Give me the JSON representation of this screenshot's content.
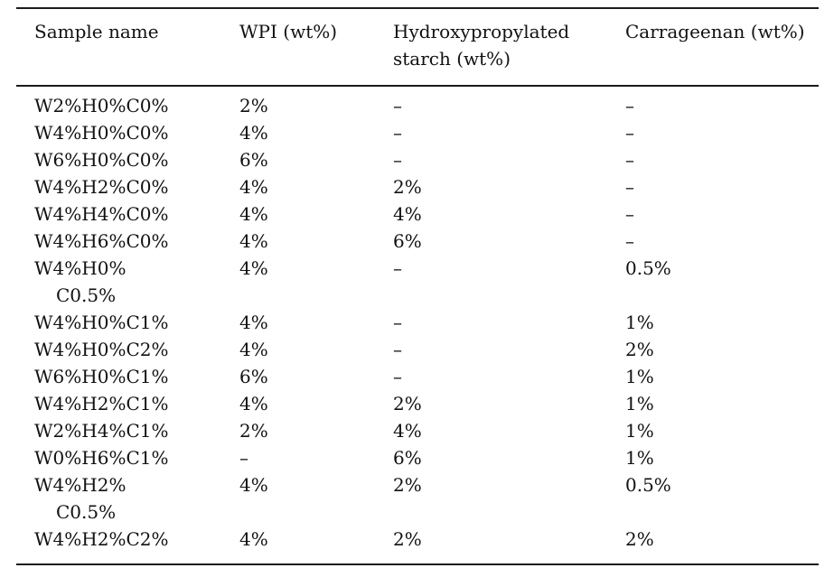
{
  "table": {
    "text_color": "#111111",
    "rule_color": "#1b1b1b",
    "columns": [
      {
        "label": "Sample name"
      },
      {
        "label": "WPI (wt%)"
      },
      {
        "label": "Hydroxypropylated starch (wt%)"
      },
      {
        "label": "Carrageenan (wt%)"
      }
    ],
    "rows": [
      {
        "sample": "W2%H0%C0%",
        "sample_wrap": "",
        "wpi": "2%",
        "starch": "–",
        "carrageenan": "–"
      },
      {
        "sample": "W4%H0%C0%",
        "sample_wrap": "",
        "wpi": "4%",
        "starch": "–",
        "carrageenan": "–"
      },
      {
        "sample": "W6%H0%C0%",
        "sample_wrap": "",
        "wpi": "6%",
        "starch": "–",
        "carrageenan": "–"
      },
      {
        "sample": "W4%H2%C0%",
        "sample_wrap": "",
        "wpi": "4%",
        "starch": "2%",
        "carrageenan": "–"
      },
      {
        "sample": "W4%H4%C0%",
        "sample_wrap": "",
        "wpi": "4%",
        "starch": "4%",
        "carrageenan": "–"
      },
      {
        "sample": "W4%H6%C0%",
        "sample_wrap": "",
        "wpi": "4%",
        "starch": "6%",
        "carrageenan": "–"
      },
      {
        "sample": "W4%H0%",
        "sample_wrap": "C0.5%",
        "wpi": "4%",
        "starch": "–",
        "carrageenan": "0.5%"
      },
      {
        "sample": "W4%H0%C1%",
        "sample_wrap": "",
        "wpi": "4%",
        "starch": "–",
        "carrageenan": "1%"
      },
      {
        "sample": "W4%H0%C2%",
        "sample_wrap": "",
        "wpi": "4%",
        "starch": "–",
        "carrageenan": "2%"
      },
      {
        "sample": "W6%H0%C1%",
        "sample_wrap": "",
        "wpi": "6%",
        "starch": "–",
        "carrageenan": "1%"
      },
      {
        "sample": "W4%H2%C1%",
        "sample_wrap": "",
        "wpi": "4%",
        "starch": "2%",
        "carrageenan": "1%"
      },
      {
        "sample": "W2%H4%C1%",
        "sample_wrap": "",
        "wpi": "2%",
        "starch": "4%",
        "carrageenan": "1%"
      },
      {
        "sample": "W0%H6%C1%",
        "sample_wrap": "",
        "wpi": "–",
        "starch": "6%",
        "carrageenan": "1%"
      },
      {
        "sample": "W4%H2%",
        "sample_wrap": "C0.5%",
        "wpi": "4%",
        "starch": "2%",
        "carrageenan": "0.5%"
      },
      {
        "sample": "W4%H2%C2%",
        "sample_wrap": "",
        "wpi": "4%",
        "starch": "2%",
        "carrageenan": "2%"
      }
    ]
  }
}
